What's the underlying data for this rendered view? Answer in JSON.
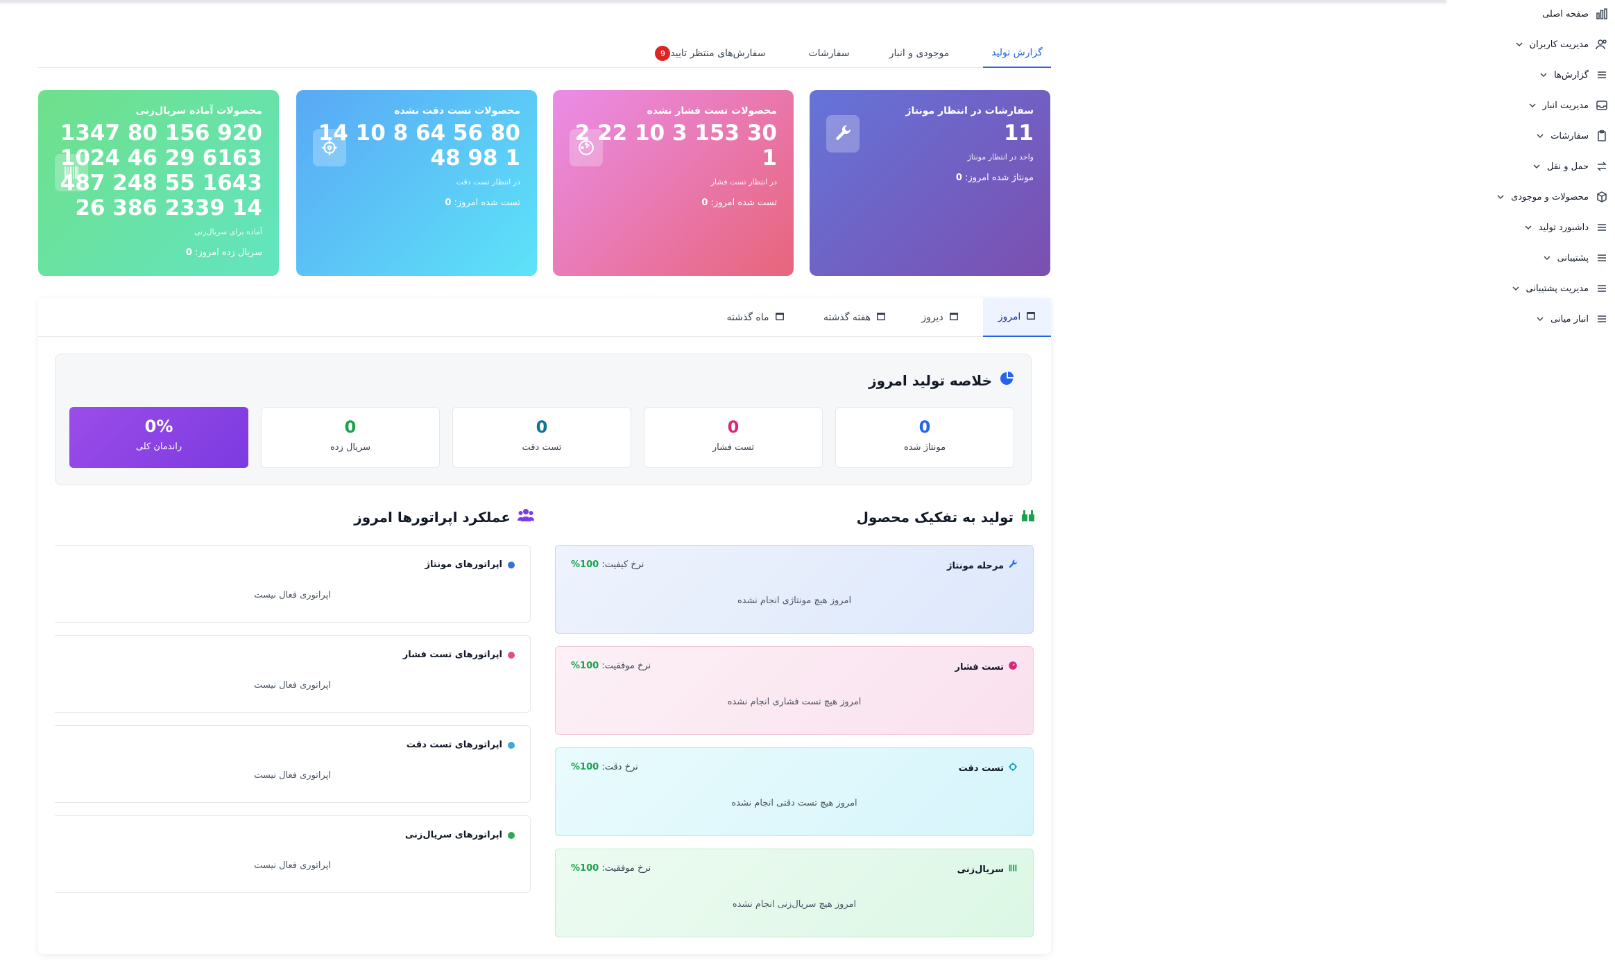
{
  "sidebar": {
    "items": [
      {
        "label": "صفحه اصلی",
        "icon": "bar-chart-icon",
        "chevron": false
      },
      {
        "label": "مدیریت کاربران",
        "icon": "users-icon",
        "chevron": true
      },
      {
        "label": "گزارش‌ها",
        "icon": "menu-icon",
        "chevron": true
      },
      {
        "label": "مدیریت انبار",
        "icon": "inbox-icon",
        "chevron": true
      },
      {
        "label": "سفارشات",
        "icon": "clipboard-icon",
        "chevron": true
      },
      {
        "label": "حمل و نقل",
        "icon": "swap-icon",
        "chevron": true
      },
      {
        "label": "محصولات و موجودی",
        "icon": "box-icon",
        "chevron": true
      },
      {
        "label": "داشبورد تولید",
        "icon": "menu-icon",
        "chevron": true
      },
      {
        "label": "پشتیبانی",
        "icon": "menu-icon",
        "chevron": true
      },
      {
        "label": "مدیریت پشتیبانی",
        "icon": "menu-icon",
        "chevron": true
      },
      {
        "label": "انبار میانی",
        "icon": "menu-icon",
        "chevron": true
      }
    ]
  },
  "tabs": {
    "production_report": "گزارش تولید",
    "inventory": "موجودی و انبار",
    "orders": "سفارشات",
    "pending_orders": "سفارش‌های منتظر تایید",
    "pending_badge": "9"
  },
  "cards": {
    "assembly": {
      "title": "سفارشات در انتظار مونتاژ",
      "value": "11",
      "sub": "واحد در انتظار مونتاژ",
      "foot_label": "مونتاژ شده امروز:",
      "foot_value": "0",
      "icon": "wrench-icon",
      "color": "#6c63c9"
    },
    "pressure": {
      "title": "محصولات تست فشار نشده",
      "value_line1": "30 153 3 10 22 2",
      "value_line2": "1",
      "sub": "در انتظار تست فشار",
      "foot_label": "تست شده امروز:",
      "foot_value": "0",
      "icon": "gauge-icon",
      "color": "#e87aa8"
    },
    "accuracy": {
      "title": "محصولات تست دقت نشده",
      "value_line1": "80 56 64 8 10 14",
      "value_line2": "1 98 48",
      "sub": "در انتظار تست دقت",
      "foot_label": "تست شده امروز:",
      "foot_value": "0",
      "icon": "crosshair-icon",
      "color": "#5cc6f7"
    },
    "serial": {
      "title": "محصولات آماده سریال‌زنی",
      "value_line1": "920 156 80 1347",
      "value_line2": "6163 29 46 1024",
      "value_line3": "1643 55 248 487",
      "value_line4": "14 2339 386 26",
      "sub": "آماده برای سریال‌زنی",
      "foot_label": "سریال زده امروز:",
      "foot_value": "0",
      "icon": "barcode-icon",
      "color": "#68e2a6"
    }
  },
  "period_tabs": {
    "today": "امروز",
    "yesterday": "دیروز",
    "last_week": "هفته گذشته",
    "last_month": "ماه گذشته"
  },
  "summary": {
    "title": "خلاصه تولید امروز",
    "assembled": {
      "value": "0",
      "label": "مونتاژ شده",
      "color": "#2563eb"
    },
    "pressure": {
      "value": "0",
      "label": "تست فشار",
      "color": "#db2777"
    },
    "accuracy": {
      "value": "0",
      "label": "تست دقت",
      "color": "#0e7490"
    },
    "serial": {
      "value": "0",
      "label": "سریال زده",
      "color": "#16a34a"
    },
    "efficiency": {
      "value": "0%",
      "label": "راندمان کلی"
    }
  },
  "product_breakdown": {
    "title": "تولید به تفکیک محصول",
    "stages": [
      {
        "name": "مرحله مونتاژ",
        "rate_label": "نرخ کیفیت:",
        "rate": "100%",
        "empty": "امروز هیچ مونتاژی انجام نشده",
        "icon": "wrench-icon"
      },
      {
        "name": "تست فشار",
        "rate_label": "نرخ موفقیت:",
        "rate": "100%",
        "empty": "امروز هیچ تست فشاری انجام نشده",
        "icon": "gauge-icon"
      },
      {
        "name": "تست دقت",
        "rate_label": "نرخ دقت:",
        "rate": "100%",
        "empty": "امروز هیچ تست دقتی انجام نشده",
        "icon": "crosshair-icon"
      },
      {
        "name": "سریال‌زنی",
        "rate_label": "نرخ موفقیت:",
        "rate": "100%",
        "empty": "امروز هیچ سریال‌زنی انجام نشده",
        "icon": "barcode-icon"
      }
    ]
  },
  "operators": {
    "title": "عملکرد اپراتورها امروز",
    "groups": [
      {
        "name": "اپراتورهای مونتاژ",
        "empty": "اپراتوری فعال نیست",
        "color": "#3b6fd8"
      },
      {
        "name": "اپراتورهای تست فشار",
        "empty": "اپراتوری فعال نیست",
        "color": "#db4f8f"
      },
      {
        "name": "اپراتورهای تست دقت",
        "empty": "اپراتوری فعال نیست",
        "color": "#3aa8d8"
      },
      {
        "name": "اپراتورهای سریال‌زنی",
        "empty": "اپراتوری فعال نیست",
        "color": "#2ea84f"
      }
    ]
  }
}
